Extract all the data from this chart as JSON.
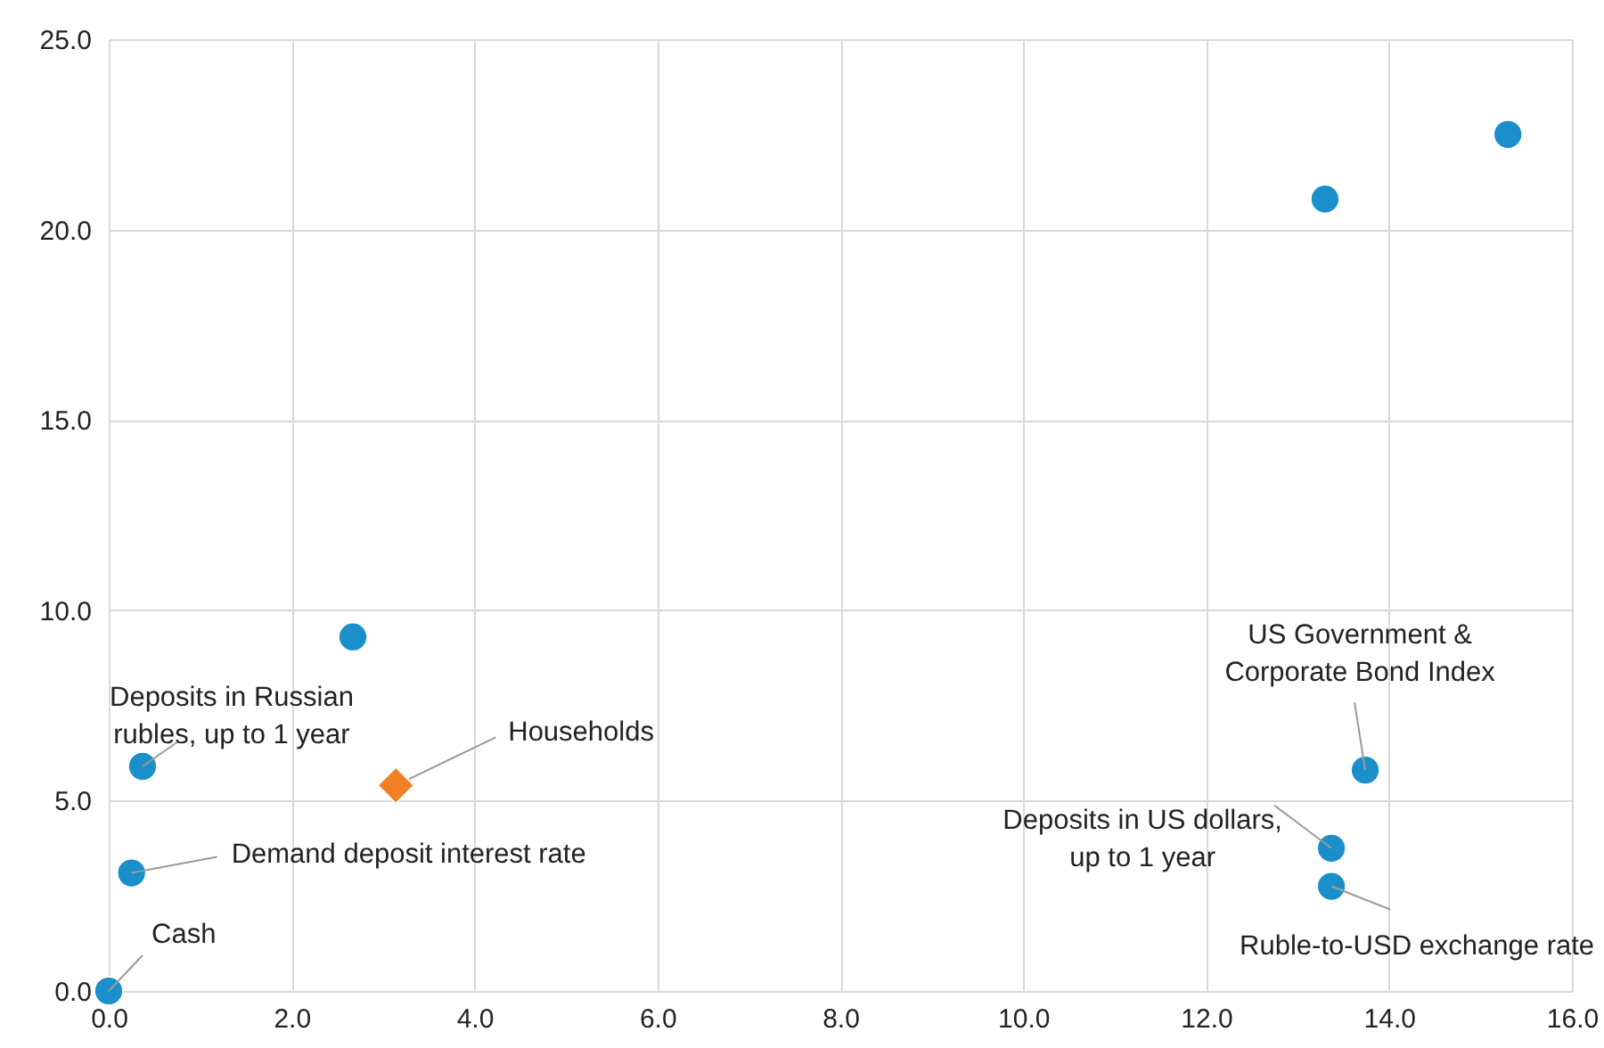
{
  "chart_data": {
    "type": "scatter",
    "x": [
      15.3,
      13.3,
      2.67,
      0.37,
      0.25,
      0,
      13.74,
      13.37,
      13.37
    ],
    "series": [
      {
        "color": "#1b8fcc",
        "marker": "circle",
        "values": [
          22.5,
          20.8,
          9.3,
          5.9,
          3.1,
          0,
          5.8,
          3.75,
          2.75
        ]
      },
      {
        "color": "#f28022",
        "marker": "diamond",
        "x": [
          3.14
        ],
        "values": [
          5.4
        ]
      }
    ],
    "xlim": [
      0,
      16
    ],
    "ylim": [
      0,
      25
    ],
    "xticks": [
      {
        "value": 0,
        "label": "0.0"
      },
      {
        "value": 2,
        "label": "2.0"
      },
      {
        "value": 4,
        "label": "4.0"
      },
      {
        "value": 6,
        "label": "6.0"
      },
      {
        "value": 8,
        "label": "8.0"
      },
      {
        "value": 10,
        "label": "10.0"
      },
      {
        "value": 12,
        "label": "12.0"
      },
      {
        "value": 14,
        "label": "14.0"
      },
      {
        "value": 16,
        "label": "16.0"
      }
    ],
    "yticks": [
      {
        "value": 0,
        "label": "0.0"
      },
      {
        "value": 5,
        "label": "5.0"
      },
      {
        "value": 10,
        "label": "10.0"
      },
      {
        "value": 15,
        "label": "15.0"
      },
      {
        "value": 20,
        "label": "20.0"
      },
      {
        "value": 25,
        "label": "25.0"
      }
    ],
    "grid": true,
    "annotations": [
      {
        "text": "Deposits in Russian\nrubles, up to 1 year",
        "x": 0.37,
        "y": 5.9
      },
      {
        "text": "Households",
        "x": 3.14,
        "y": 5.4
      },
      {
        "text": "Demand deposit interest rate",
        "x": 0.25,
        "y": 3.1
      },
      {
        "text": "Cash",
        "x": 0,
        "y": 0
      },
      {
        "text": "US Government &\nCorporate Bond Index",
        "x": 13.74,
        "y": 5.8
      },
      {
        "text": "Deposits in US dollars,\nup to 1 year",
        "x": 13.37,
        "y": 3.75
      },
      {
        "text": "Ruble-to-USD exchange rate",
        "x": 13.37,
        "y": 2.75
      }
    ]
  }
}
